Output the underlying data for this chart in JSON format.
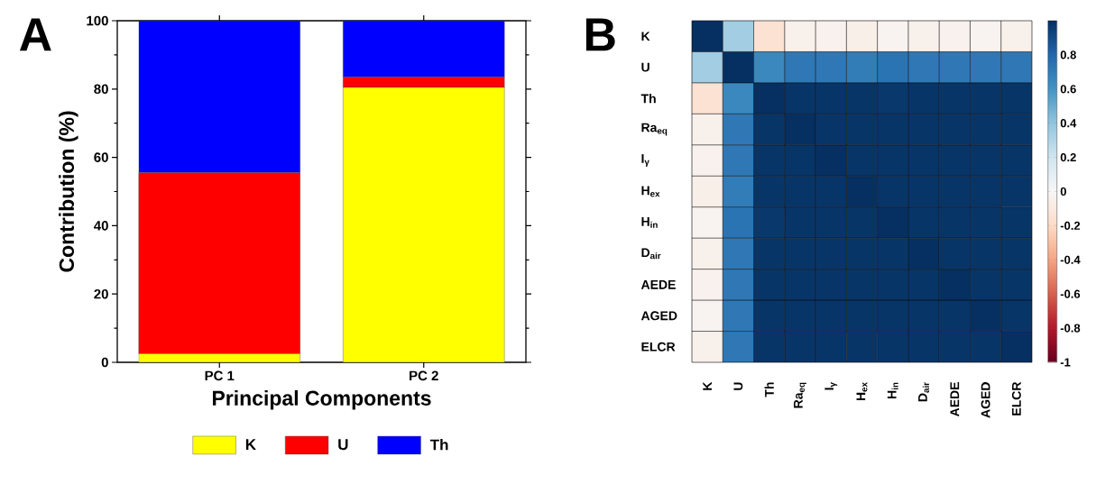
{
  "chart_data": [
    {
      "type": "bar",
      "title": "A",
      "stacked": true,
      "categories": [
        "PC 1",
        "PC 2"
      ],
      "xlabel": "Principal Components",
      "ylabel": "Contribution (%)",
      "ylim": [
        0,
        100
      ],
      "yticks": [
        0,
        20,
        40,
        60,
        80,
        100
      ],
      "legend": "bottom",
      "series": [
        {
          "name": "K",
          "color": "#ffff00",
          "values": [
            2.5,
            80.5
          ]
        },
        {
          "name": "U",
          "color": "#ff0000",
          "values": [
            53,
            3
          ]
        },
        {
          "name": "Th",
          "color": "#0000ff",
          "values": [
            44.5,
            16.5
          ]
        }
      ]
    },
    {
      "type": "heatmap",
      "title": "B",
      "categories": [
        "K",
        "U",
        "Th",
        "Ra$_{eq}$",
        "I$_{γ}$",
        "H$_{ex}$",
        "H$_{in}$",
        "D$_{air}$",
        "AEDE",
        "AGED",
        "ELCR"
      ],
      "y_categories": [
        "K",
        "U",
        "Th",
        "Ra$_{eq}$",
        "I$_{γ}$",
        "H$_{ex}$",
        "H$_{in}$",
        "D$_{air}$",
        "AEDE",
        "AGED",
        "ELCR"
      ],
      "clim": [
        -1,
        1
      ],
      "cticks": [
        -1,
        -0.8,
        -0.6,
        -0.4,
        -0.2,
        0,
        0.2,
        0.4,
        0.6,
        0.8
      ],
      "cells": [
        [
          1,
          0.35,
          -0.15,
          -0.05,
          -0.04,
          -0.06,
          -0.03,
          -0.05,
          -0.04,
          -0.03,
          -0.05
        ],
        [
          0.35,
          1,
          0.65,
          0.72,
          0.72,
          0.7,
          0.74,
          0.72,
          0.72,
          0.72,
          0.72
        ],
        [
          -0.15,
          0.65,
          1,
          0.98,
          0.98,
          0.98,
          0.97,
          0.98,
          0.98,
          0.98,
          0.98
        ],
        [
          -0.05,
          0.72,
          0.98,
          1,
          0.98,
          0.98,
          0.98,
          0.98,
          0.98,
          0.98,
          0.98
        ],
        [
          -0.04,
          0.72,
          0.98,
          0.98,
          1,
          0.98,
          0.98,
          0.98,
          0.98,
          0.98,
          0.98
        ],
        [
          -0.06,
          0.7,
          0.98,
          0.98,
          0.98,
          1,
          0.98,
          0.98,
          0.98,
          0.98,
          0.98
        ],
        [
          -0.03,
          0.74,
          0.97,
          0.98,
          0.98,
          0.98,
          1,
          0.98,
          0.98,
          0.98,
          0.98
        ],
        [
          -0.05,
          0.72,
          0.98,
          0.98,
          0.98,
          0.98,
          0.98,
          1,
          0.98,
          0.98,
          0.98
        ],
        [
          -0.04,
          0.72,
          0.98,
          0.98,
          0.98,
          0.98,
          0.98,
          0.98,
          1,
          0.98,
          0.98
        ],
        [
          -0.03,
          0.72,
          0.98,
          0.98,
          0.98,
          0.98,
          0.98,
          0.98,
          0.98,
          1,
          0.98
        ],
        [
          -0.05,
          0.72,
          0.98,
          0.98,
          0.98,
          0.98,
          0.98,
          0.98,
          0.98,
          0.98,
          1
        ]
      ]
    }
  ]
}
